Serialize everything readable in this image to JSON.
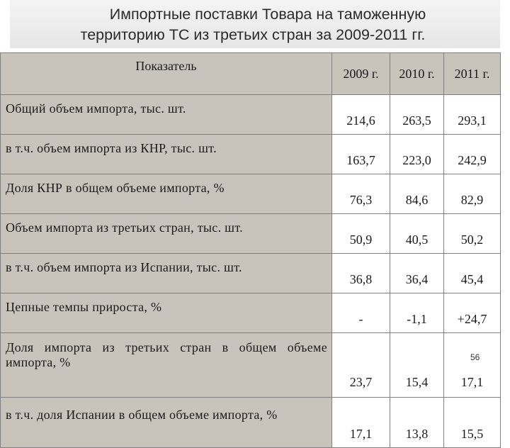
{
  "title": {
    "line1": "Импортные поставки Товара на таможенную",
    "line2": "территорию ТС из третьих стран за 2009-2011 гг."
  },
  "table": {
    "headers": [
      "Показатель",
      "2009 г.",
      "2010 г.",
      "2011 г."
    ],
    "rows": [
      {
        "label": "Общий объем импорта, тыс. шт.",
        "values": [
          "214,6",
          "263,5",
          "293,1"
        ]
      },
      {
        "label": "в т.ч. объем импорта из КНР, тыс. шт.",
        "values": [
          "163,7",
          "223,0",
          "242,9"
        ]
      },
      {
        "label": "Доля КНР в общем объеме импорта, %",
        "values": [
          "76,3",
          "84,6",
          "82,9"
        ]
      },
      {
        "label": "Объем импорта из третьих стран, тыс. шт.",
        "values": [
          "50,9",
          "40,5",
          "50,2"
        ]
      },
      {
        "label": "в т.ч. объем импорта из Испании, тыс. шт.",
        "values": [
          "36,8",
          "36,4",
          "45,4"
        ]
      },
      {
        "label": "Цепные темпы прироста, %",
        "values": [
          "-",
          "-1,1",
          "+24,7"
        ]
      },
      {
        "label": "Доля импорта из третьих стран в общем объеме импорта, %",
        "values": [
          "23,7",
          "15,4",
          "17,1"
        ]
      },
      {
        "label": "в т.ч. доля Испании в общем объеме импорта, %",
        "values": [
          "17,1",
          "13,8",
          "15,5"
        ]
      }
    ]
  },
  "page_number": "56"
}
